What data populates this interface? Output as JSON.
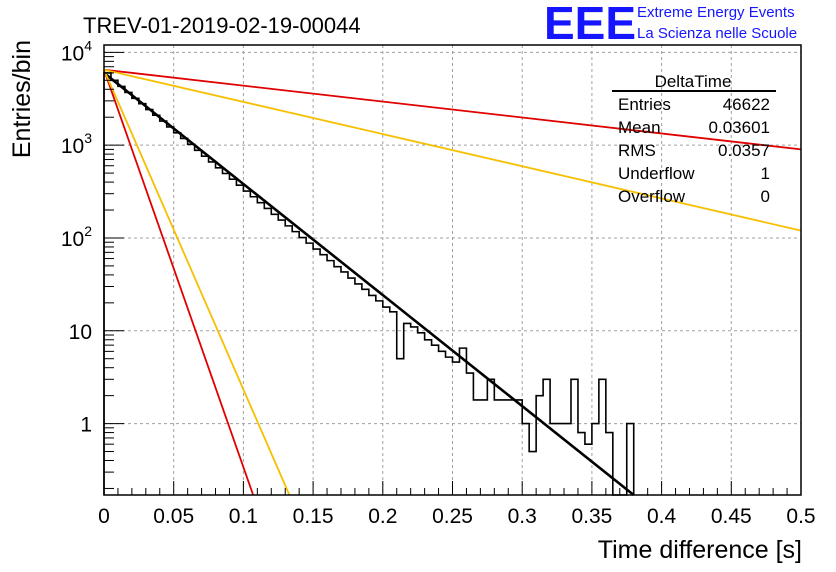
{
  "header": {
    "run_title": "TREV-01-2019-02-19-00044",
    "logo": "EEE",
    "logo_line1": "Extreme Energy Events",
    "logo_line2": "La Scienza nelle Scuole"
  },
  "stats_box": {
    "title": "DeltaTime",
    "rows": [
      {
        "label": "Entries",
        "value": "46622"
      },
      {
        "label": "Mean",
        "value": "0.03601"
      },
      {
        "label": "RMS",
        "value": "0.0357"
      },
      {
        "label": "Underflow",
        "value": "1"
      },
      {
        "label": "Overflow",
        "value": "0"
      }
    ]
  },
  "colors": {
    "histogram": "#000000",
    "fit": "#000000",
    "red_lines": "#e00000",
    "yellow_lines": "#f5c000",
    "grid": "#a0a0a0"
  },
  "chart_data": {
    "type": "line",
    "title": "TREV-01-2019-02-19-00044",
    "xlabel": "Time difference [s]",
    "ylabel": "Entries/bin",
    "xlim": [
      0,
      0.5
    ],
    "ylim": [
      0.17,
      12000
    ],
    "yscale": "log",
    "grid": true,
    "x_tick_labels": [
      "0",
      "0.05",
      "0.1",
      "0.15",
      "0.2",
      "0.25",
      "0.3",
      "0.35",
      "0.4",
      "0.45",
      "0.5"
    ],
    "y_tick_labels": [
      {
        "value": 1,
        "label": "1"
      },
      {
        "value": 10,
        "label": "10"
      },
      {
        "value": 100,
        "label": "10",
        "exp": "2"
      },
      {
        "value": 1000,
        "label": "10",
        "exp": "3"
      },
      {
        "value": 10000,
        "label": "10",
        "exp": "4"
      }
    ],
    "histogram": {
      "bin_width": 0.005,
      "x_start": 0,
      "counts": [
        6000,
        5000,
        4300,
        3700,
        3200,
        2800,
        2420,
        2100,
        1820,
        1570,
        1360,
        1180,
        1020,
        880,
        760,
        660,
        570,
        495,
        430,
        370,
        320,
        278,
        240,
        208,
        180,
        156,
        135,
        117,
        101,
        88,
        76,
        66,
        57,
        49,
        43,
        37,
        32,
        28,
        24,
        21,
        18,
        16,
        5,
        12,
        11,
        9.5,
        8,
        7,
        6,
        5.2,
        4.6,
        6.5,
        3.5,
        1.8,
        1.8,
        3,
        1.8,
        1.8,
        1.8,
        1.8,
        1.0,
        0.5,
        2.0,
        3.0,
        1.0,
        1.0,
        1.0,
        3.0,
        0.8,
        0.6,
        1.0,
        3.0,
        0.8,
        0.0,
        0.0,
        1.0
      ]
    },
    "series": [
      {
        "color": "black",
        "x": [
          0,
          0.38
        ],
        "y": [
          6000,
          0.17
        ]
      },
      {
        "color": "red",
        "x": [
          0,
          0.5
        ],
        "y": [
          6500,
          900
        ]
      },
      {
        "color": "red",
        "x": [
          0,
          0.107
        ],
        "y": [
          6500,
          0.17
        ]
      },
      {
        "color": "yellow",
        "x": [
          0,
          0.5
        ],
        "y": [
          6500,
          120
        ]
      },
      {
        "color": "yellow",
        "x": [
          0,
          0.133
        ],
        "y": [
          6500,
          0.17
        ]
      }
    ]
  }
}
